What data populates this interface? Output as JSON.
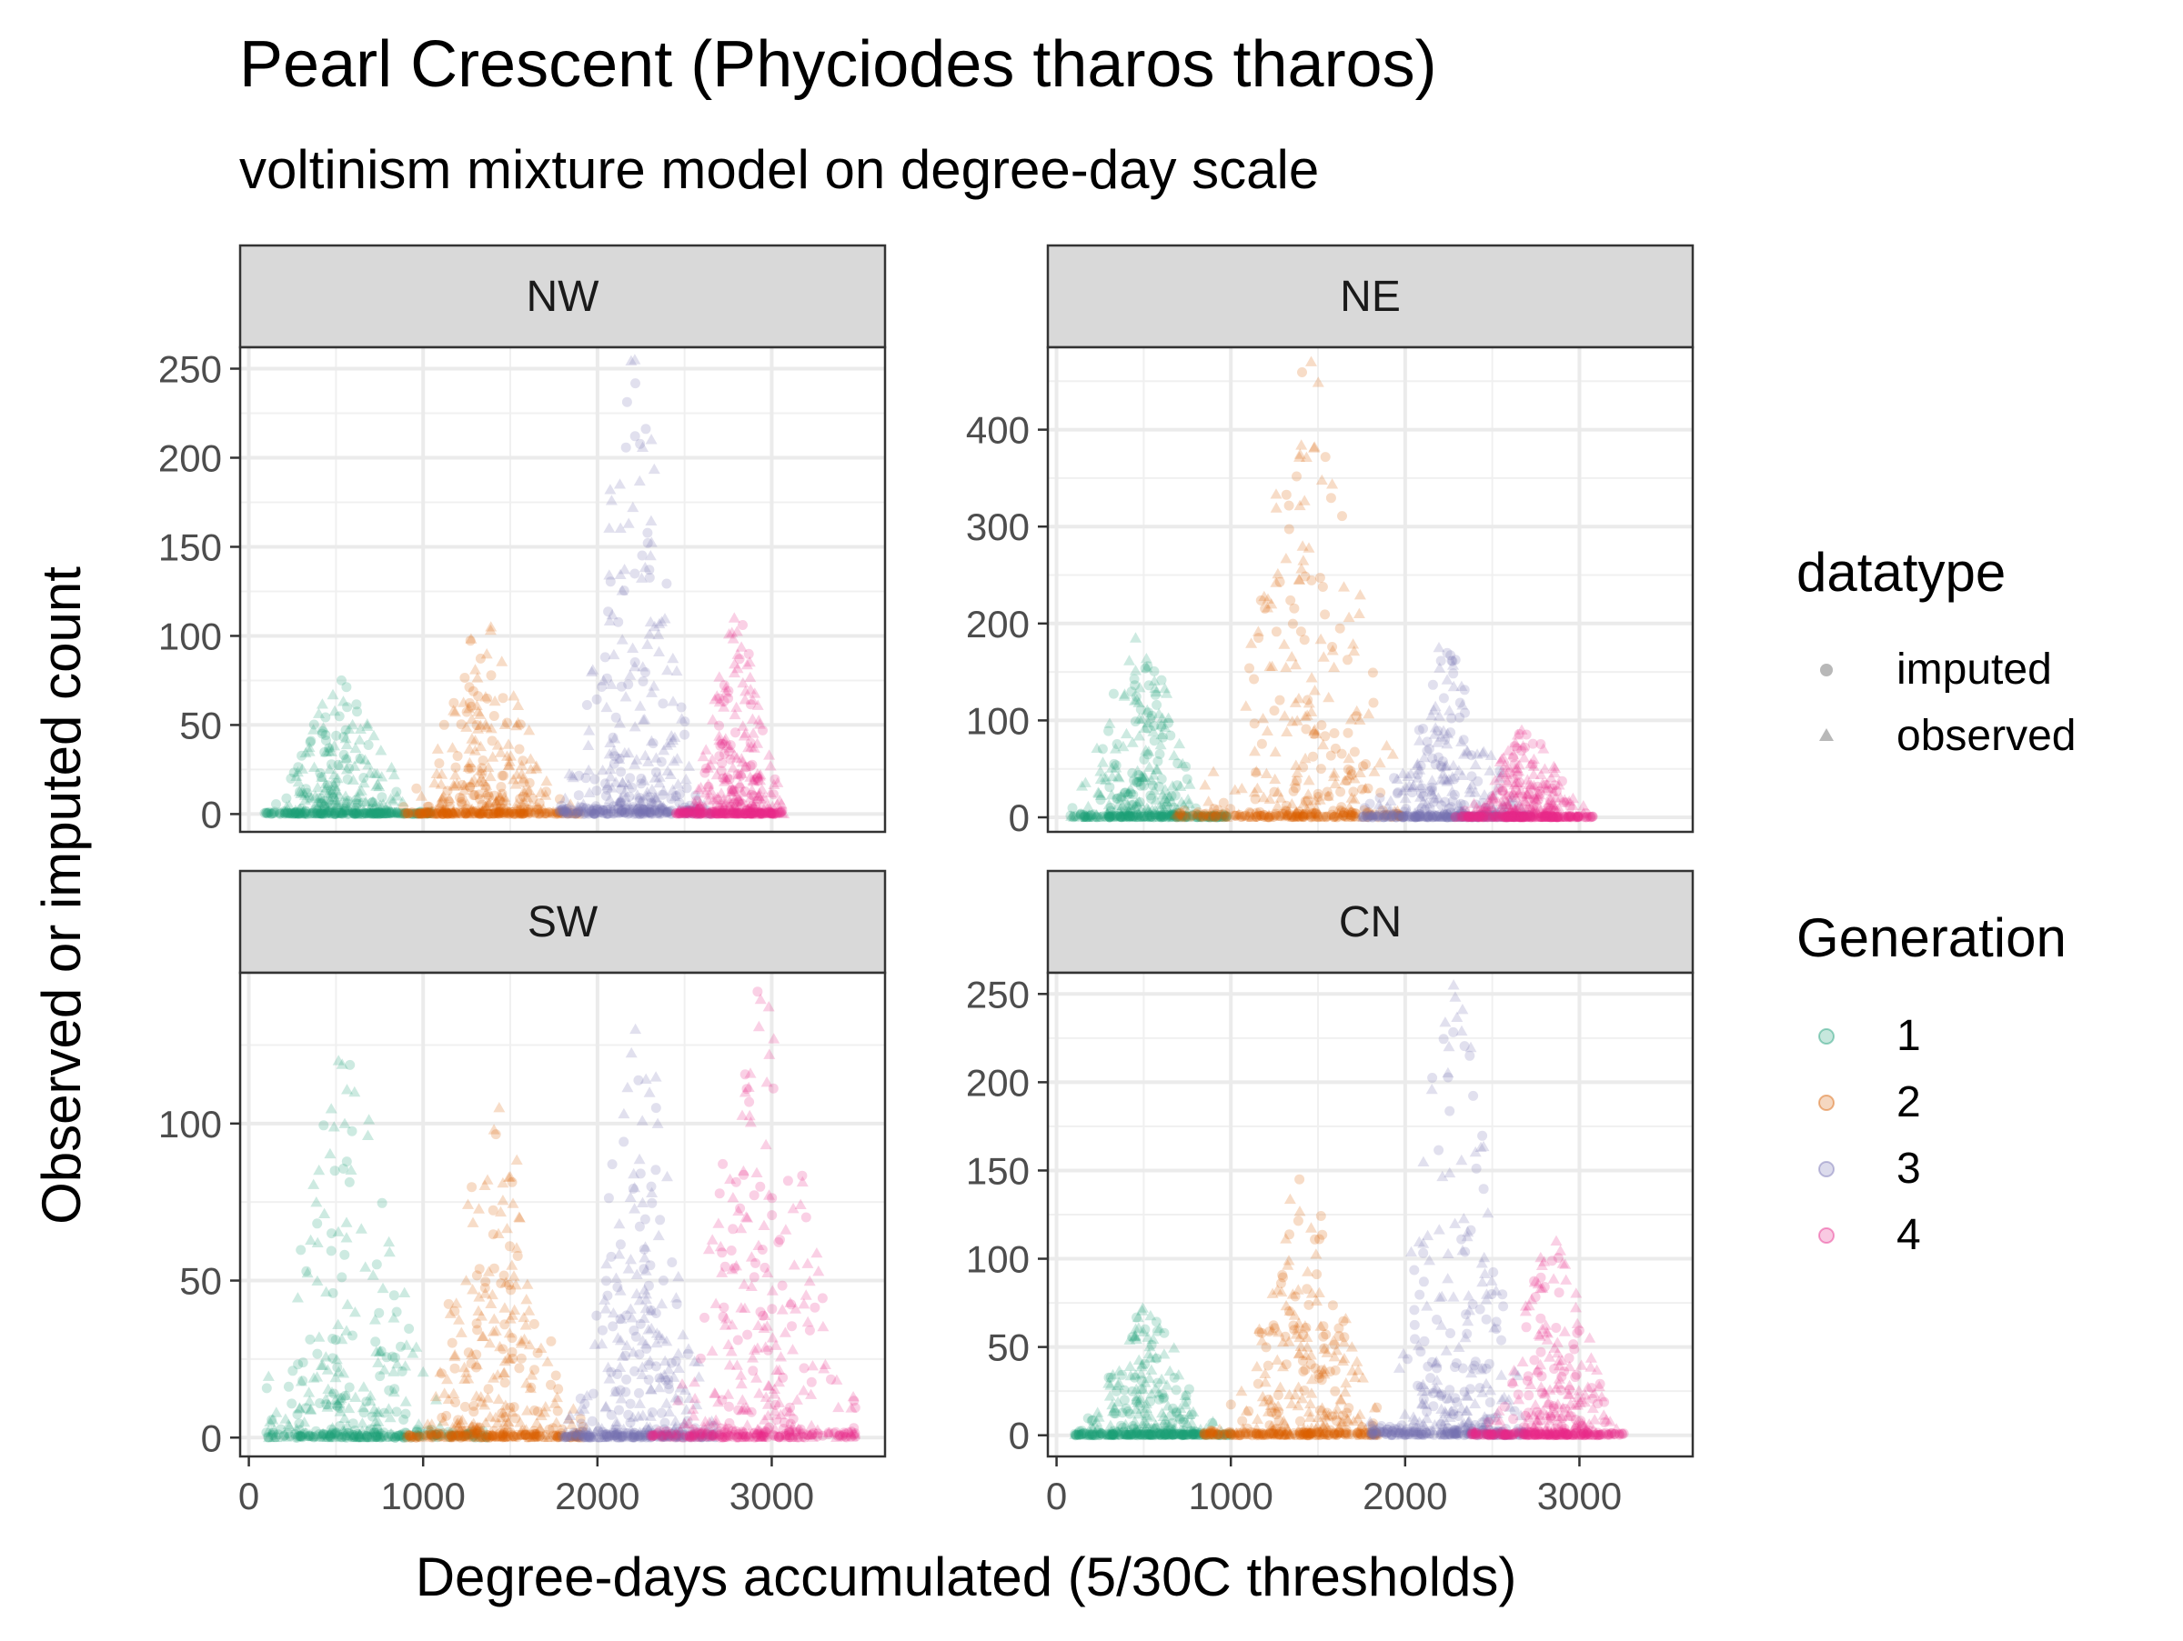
{
  "chart_data": {
    "type": "scatter",
    "title": "Pearl Crescent (Phyciodes tharos tharos)",
    "subtitle": "voltinism mixture model on degree-day scale",
    "xlabel": "Degree-days accumulated (5/30C thresholds)",
    "ylabel": "Observed or imputed count",
    "xlim": [
      -50,
      3650
    ],
    "x_ticks": [
      0,
      1000,
      2000,
      3000
    ],
    "grid": true,
    "colors": {
      "1": "#1b9e77",
      "2": "#d95f02",
      "3": "#7570b3",
      "4": "#e7298a"
    },
    "legend": {
      "placement": "right",
      "datatype": {
        "title": "datatype",
        "entries": [
          "imputed",
          "observed"
        ]
      },
      "generation": {
        "title": "Generation",
        "entries": [
          "1",
          "2",
          "3",
          "4"
        ]
      }
    },
    "facets": [
      {
        "name": "NW",
        "ylim": [
          -10,
          262
        ],
        "y_ticks": [
          0,
          50,
          100,
          150,
          200,
          250
        ],
        "series": [
          {
            "name": "1",
            "x_range": [
              90,
              1050
            ],
            "x_peak": 540,
            "y_max": 75
          },
          {
            "name": "2",
            "x_range": [
              880,
              1900
            ],
            "x_peak": 1350,
            "y_max": 105
          },
          {
            "name": "3",
            "x_range": [
              1780,
              2650
            ],
            "x_peak": 2200,
            "y_max": 255
          },
          {
            "name": "4",
            "x_range": [
              2450,
              3070
            ],
            "x_peak": 2800,
            "y_max": 110
          }
        ]
      },
      {
        "name": "NE",
        "ylim": [
          -15,
          485
        ],
        "y_ticks": [
          0,
          100,
          200,
          300,
          400
        ],
        "series": [
          {
            "name": "1",
            "x_range": [
              80,
              980
            ],
            "x_peak": 480,
            "y_max": 185
          },
          {
            "name": "2",
            "x_range": [
              680,
              1980
            ],
            "x_peak": 1450,
            "y_max": 470
          },
          {
            "name": "3",
            "x_range": [
              1750,
              2720
            ],
            "x_peak": 2230,
            "y_max": 175
          },
          {
            "name": "4",
            "x_range": [
              2280,
              3100
            ],
            "x_peak": 2700,
            "y_max": 90
          }
        ]
      },
      {
        "name": "SW",
        "ylim": [
          -6,
          148
        ],
        "y_ticks": [
          0,
          50,
          100
        ],
        "series": [
          {
            "name": "1",
            "x_range": [
              100,
              1380
            ],
            "x_peak": 560,
            "y_max": 120
          },
          {
            "name": "2",
            "x_range": [
              900,
              1920
            ],
            "x_peak": 1420,
            "y_max": 105
          },
          {
            "name": "3",
            "x_range": [
              1780,
              2700
            ],
            "x_peak": 2250,
            "y_max": 130
          },
          {
            "name": "4",
            "x_range": [
              2300,
              3480
            ],
            "x_peak": 2950,
            "y_max": 142
          }
        ]
      },
      {
        "name": "CN",
        "ylim": [
          -12,
          262
        ],
        "y_ticks": [
          0,
          50,
          100,
          150,
          200,
          250
        ],
        "series": [
          {
            "name": "1",
            "x_range": [
              100,
              1000
            ],
            "x_peak": 520,
            "y_max": 72
          },
          {
            "name": "2",
            "x_range": [
              840,
              1850
            ],
            "x_peak": 1420,
            "y_max": 145
          },
          {
            "name": "3",
            "x_range": [
              1780,
              2700
            ],
            "x_peak": 2280,
            "y_max": 255
          },
          {
            "name": "4",
            "x_range": [
              2380,
              3260
            ],
            "x_peak": 2850,
            "y_max": 110
          }
        ]
      }
    ]
  }
}
